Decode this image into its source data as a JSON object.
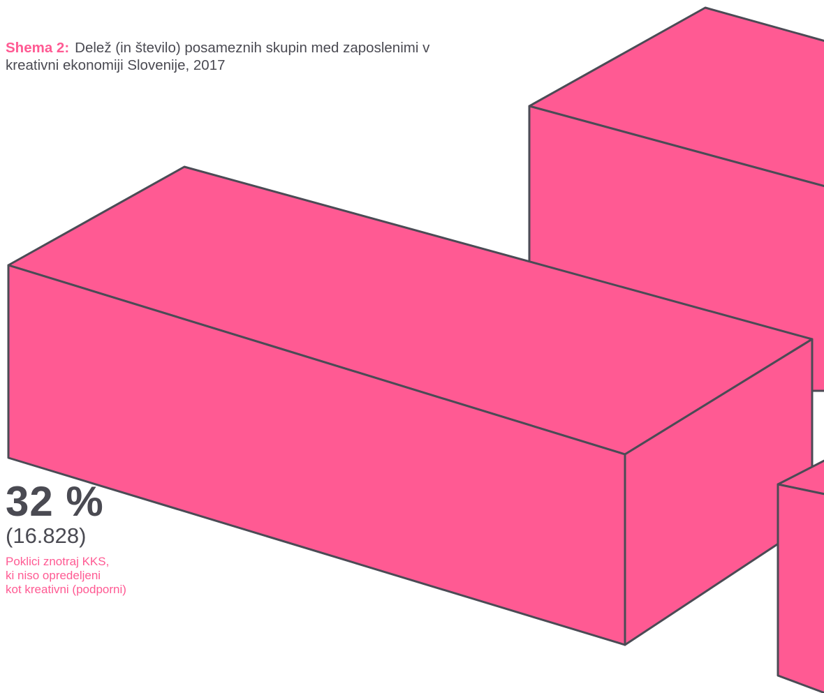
{
  "colors": {
    "block_fill": "#ff5a93",
    "block_stroke": "#4b4b55",
    "accent": "#ff5a93",
    "text": "#4a4a52"
  },
  "caption": {
    "label": "Shema 2:",
    "text": "Delež (in število) posameznih skupin med zaposlenimi v kreativni ekonomiji Slovenije, 2017"
  },
  "chart_data": {
    "type": "bar",
    "title": "Delež (in število) posameznih skupin med zaposlenimi v kreativni ekonomiji Slovenije, 2017",
    "categories": [
      "Poklici znotraj KKS, ki niso opredeljeni kot kreativni (podporni)"
    ],
    "series": [
      {
        "values": [
          32
        ]
      }
    ],
    "counts": [
      16828
    ],
    "value_labels": [
      "32 %"
    ],
    "count_labels": [
      "(16.828)"
    ],
    "unit": "%",
    "style": "isometric-3d-blocks",
    "legend": "none",
    "grid": false
  },
  "labels": {
    "share": "32 %",
    "count": "(16.828)",
    "description": "Poklici znotraj KKS,\nki niso opredeljeni\nkot kreativni (podporni)"
  }
}
